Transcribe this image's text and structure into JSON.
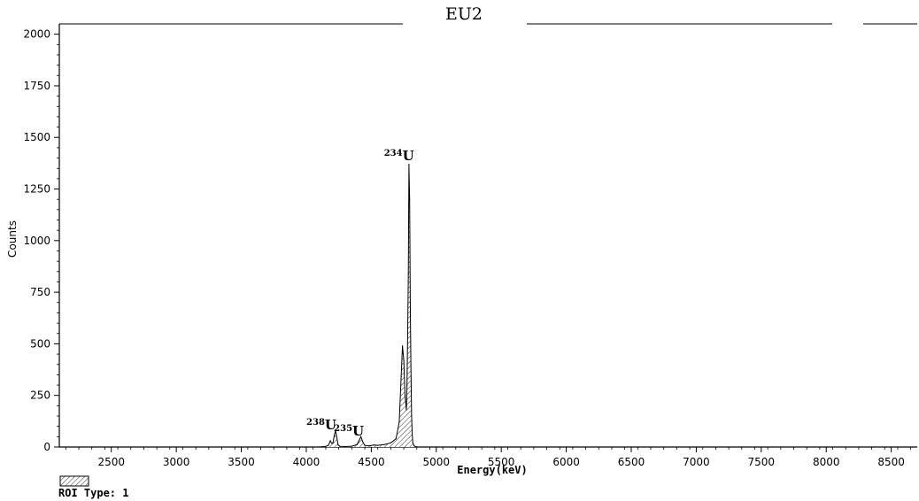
{
  "chart_data": {
    "type": "area",
    "title": "EU2",
    "xlabel": "Energy(keV)",
    "ylabel": "Counts",
    "xlim": [
      2100,
      8700
    ],
    "ylim": [
      0,
      2050
    ],
    "x_ticks": [
      2500,
      3000,
      3500,
      4000,
      4500,
      5000,
      5500,
      6000,
      6500,
      7000,
      7500,
      8000,
      8500
    ],
    "y_ticks": [
      0,
      250,
      500,
      750,
      1000,
      1250,
      1500,
      1750,
      2000
    ],
    "x_tick_labels": [
      "2500",
      "3000",
      "3500",
      "4000",
      "4500",
      "5000",
      "5500",
      "6000",
      "6500",
      "7000",
      "7500",
      "8000",
      "8500"
    ],
    "y_tick_labels": [
      "0",
      "250",
      "500",
      "750",
      "1000",
      "1250",
      "1500",
      "1750",
      "2000"
    ],
    "grid": false,
    "series": [
      {
        "x": [
          4100,
          4150,
          4170,
          4185,
          4195,
          4205,
          4215,
          4225,
          4235,
          4245,
          4260,
          4300,
          4350,
          4390,
          4405,
          4420,
          4435,
          4450,
          4480,
          4520,
          4550,
          4600,
          4650,
          4690,
          4715,
          4730,
          4740,
          4750,
          4760,
          4770,
          4775,
          4780,
          4785,
          4790,
          4795,
          4800,
          4805,
          4810,
          4815,
          4820,
          4830,
          4850
        ],
        "values": [
          0,
          3,
          8,
          30,
          18,
          20,
          55,
          80,
          45,
          10,
          3,
          2,
          4,
          12,
          30,
          50,
          25,
          8,
          5,
          10,
          8,
          12,
          20,
          40,
          120,
          340,
          490,
          420,
          250,
          180,
          300,
          560,
          840,
          1370,
          1200,
          700,
          400,
          150,
          60,
          20,
          5,
          0
        ]
      }
    ],
    "annotations": [
      {
        "mass": "238",
        "element": "U",
        "x": 4198,
        "y": 85
      },
      {
        "mass": "235",
        "element": "U",
        "x": 4410,
        "y": 55
      },
      {
        "mass": "234",
        "element": "U",
        "x": 4795,
        "y": 1390
      }
    ]
  },
  "legend": {
    "label": "ROI Type: 1"
  }
}
